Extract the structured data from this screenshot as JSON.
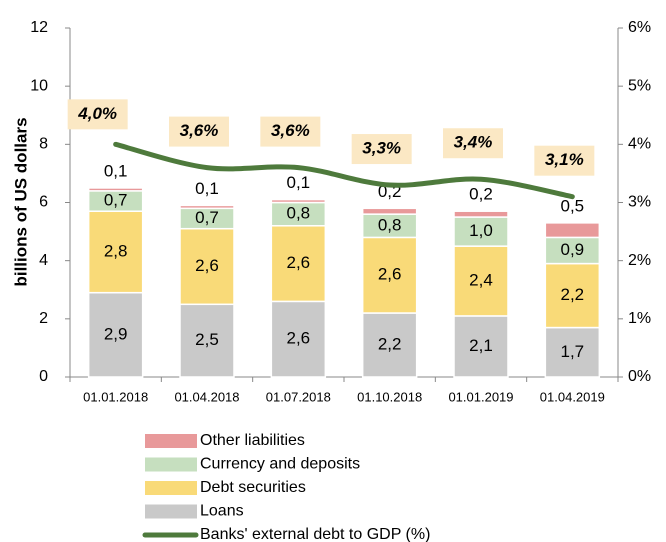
{
  "chart_data": {
    "type": "bar",
    "stacked": true,
    "ylabel": "billions of US dollars",
    "categories": [
      "01.01.2018",
      "01.04.2018",
      "01.07.2018",
      "01.10.2018",
      "01.01.2019",
      "01.04.2019"
    ],
    "series": [
      {
        "name": "Loans",
        "color": "#c9c9c9",
        "values": [
          2.9,
          2.5,
          2.6,
          2.2,
          2.1,
          1.7
        ],
        "value_labels": [
          "2,9",
          "2,5",
          "2,6",
          "2,2",
          "2,1",
          "1,7"
        ]
      },
      {
        "name": "Debt securities",
        "color": "#f9da78",
        "values": [
          2.8,
          2.6,
          2.6,
          2.6,
          2.4,
          2.2
        ],
        "value_labels": [
          "2,8",
          "2,6",
          "2,6",
          "2,6",
          "2,4",
          "2,2"
        ]
      },
      {
        "name": "Currency and deposits",
        "color": "#c6dfbf",
        "values": [
          0.7,
          0.7,
          0.8,
          0.8,
          1.0,
          0.9
        ],
        "value_labels": [
          "0,7",
          "0,7",
          "0,8",
          "0,8",
          "1,0",
          "0,9"
        ]
      },
      {
        "name": "Other liabilities",
        "color": "#e8999a",
        "values": [
          0.1,
          0.1,
          0.1,
          0.2,
          0.2,
          0.5
        ],
        "value_labels": [
          "0,1",
          "0,1",
          "0,1",
          "0,2",
          "0,2",
          "0,5"
        ]
      },
      {
        "name": "Banks' external debt to GDP (%)",
        "type": "line",
        "axis": "y2",
        "color": "#4e7a3c",
        "values": [
          4.0,
          3.6,
          3.6,
          3.3,
          3.4,
          3.1
        ],
        "value_labels": [
          "4,0%",
          "3,6%",
          "3,6%",
          "3,3%",
          "3,4%",
          "3,1%"
        ]
      }
    ],
    "ylim": [
      0,
      12
    ],
    "yticks": [
      0,
      2,
      4,
      6,
      8,
      10,
      12
    ],
    "y2lim": [
      0,
      6
    ],
    "y2ticks": [
      {
        "value": 0,
        "label": "0%"
      },
      {
        "value": 1,
        "label": "1%"
      },
      {
        "value": 2,
        "label": "2%"
      },
      {
        "value": 3,
        "label": "3%"
      },
      {
        "value": 4,
        "label": "4%"
      },
      {
        "value": 5,
        "label": "5%"
      },
      {
        "value": 6,
        "label": "6%"
      }
    ]
  }
}
